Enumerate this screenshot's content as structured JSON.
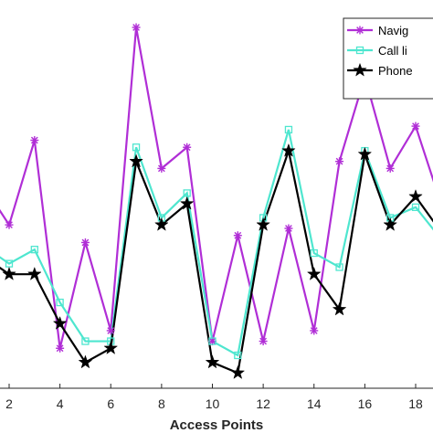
{
  "chart_data": {
    "type": "line",
    "xlabel": "Access Points",
    "ylabel": "",
    "title": "",
    "grid": false,
    "legend_position": "top-right",
    "x": [
      1,
      2,
      3,
      4,
      5,
      6,
      7,
      8,
      9,
      10,
      11,
      12,
      13,
      14,
      15,
      16,
      17,
      18,
      19
    ],
    "x_tick_labels": [
      "2",
      "4",
      "6",
      "8",
      "10",
      "12",
      "14",
      "16",
      "18"
    ],
    "x_tick_values": [
      2,
      4,
      6,
      8,
      10,
      12,
      14,
      16,
      18
    ],
    "xlim": [
      1.6,
      18.8
    ],
    "ylim": [
      0,
      100
    ],
    "series": [
      {
        "name": "Navig",
        "color": "#b02ed6",
        "marker": "asterisk",
        "values": [
          55,
          44,
          68,
          9,
          39,
          14,
          100,
          60,
          66,
          11,
          41,
          11,
          43,
          14,
          62,
          86,
          60,
          72,
          50
        ]
      },
      {
        "name": "Call li",
        "color": "#4ee6cf",
        "marker": "square",
        "values": [
          38,
          33,
          37,
          22,
          11,
          11,
          66,
          46,
          53,
          11,
          7,
          46,
          71,
          36,
          32,
          65,
          46,
          49,
          40
        ]
      },
      {
        "name": "Phone",
        "color": "#000000",
        "marker": "pentagram",
        "values": [
          35,
          30,
          30,
          16,
          5,
          9,
          62,
          44,
          50,
          5,
          2,
          44,
          65,
          30,
          20,
          64,
          44,
          52,
          42
        ]
      }
    ]
  }
}
